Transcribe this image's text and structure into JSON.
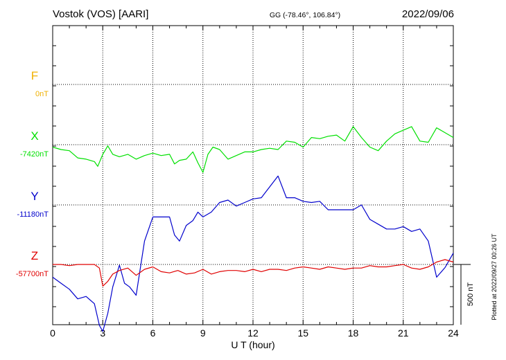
{
  "header": {
    "station": "Vostok (VOS)  [AARI]",
    "coords": "GG (-78.46°, 106.84°)",
    "date": "2022/09/06"
  },
  "footer": {
    "xlabel": "U T (hour)",
    "plotted": "Plotted at 2022/09/27 00:26 UT",
    "scale_label": "500 nT"
  },
  "chart_data": {
    "type": "line",
    "xlabel": "U T (hour)",
    "xlim": [
      0,
      24
    ],
    "xticks": [
      "0",
      "3",
      "6",
      "9",
      "12",
      "15",
      "18",
      "21",
      "24"
    ],
    "scale_nT": 500,
    "grid": true,
    "series": [
      {
        "name": "F",
        "baseline_label": "0nT",
        "color": "#f0b000",
        "x": [],
        "y": []
      },
      {
        "name": "X",
        "baseline_label": "-7420nT",
        "color": "#00e000",
        "x": [
          0,
          0.5,
          1.0,
          1.5,
          2.0,
          2.5,
          2.7,
          3.0,
          3.3,
          3.6,
          4.0,
          4.5,
          5.0,
          5.5,
          6.0,
          6.5,
          7.0,
          7.3,
          7.6,
          8.0,
          8.4,
          8.7,
          9.0,
          9.3,
          9.6,
          10.0,
          10.5,
          11.0,
          11.5,
          12.0,
          12.5,
          13.0,
          13.5,
          14.0,
          14.5,
          15.0,
          15.5,
          16.0,
          16.5,
          17.0,
          17.5,
          18.0,
          18.5,
          19.0,
          19.5,
          20.0,
          20.5,
          21.0,
          21.5,
          22.0,
          22.5,
          23.0,
          23.5,
          24.0
        ],
        "y": [
          -20,
          -40,
          -50,
          -110,
          -120,
          -140,
          -180,
          -80,
          -10,
          -80,
          -100,
          -80,
          -120,
          -90,
          -70,
          -90,
          -80,
          -160,
          -130,
          -120,
          -60,
          -150,
          -230,
          -80,
          -20,
          -40,
          -120,
          -90,
          -60,
          -60,
          -40,
          -30,
          -40,
          30,
          20,
          -20,
          60,
          50,
          70,
          80,
          30,
          150,
          60,
          -20,
          -50,
          30,
          90,
          120,
          150,
          30,
          20,
          140,
          100,
          60
        ]
      },
      {
        "name": "Y",
        "baseline_label": "-11180nT",
        "color": "#0000cc",
        "x": [
          0,
          0.5,
          1.0,
          1.5,
          2.0,
          2.5,
          2.8,
          3.0,
          3.3,
          3.6,
          4.0,
          4.3,
          4.6,
          5.0,
          5.5,
          6.0,
          6.5,
          7.0,
          7.3,
          7.6,
          8.0,
          8.4,
          8.7,
          9.0,
          9.5,
          10.0,
          10.5,
          11.0,
          11.5,
          12.0,
          12.5,
          13.0,
          13.5,
          14.0,
          14.5,
          15.0,
          15.5,
          16.0,
          16.5,
          17.0,
          17.5,
          18.0,
          18.5,
          19.0,
          19.5,
          20.0,
          20.5,
          21.0,
          21.5,
          22.0,
          22.5,
          23.0,
          23.5,
          24.0
        ],
        "y": [
          -600,
          -650,
          -700,
          -780,
          -760,
          -820,
          -1000,
          -1050,
          -900,
          -680,
          -500,
          -650,
          -680,
          -750,
          -300,
          -100,
          -100,
          -100,
          -250,
          -300,
          -170,
          -130,
          -60,
          -100,
          -60,
          20,
          40,
          -10,
          20,
          50,
          60,
          150,
          240,
          60,
          60,
          30,
          20,
          30,
          -40,
          -40,
          -40,
          -40,
          0,
          -120,
          -160,
          -200,
          -200,
          -180,
          -220,
          -200,
          -300,
          -600,
          -520,
          -400
        ]
      },
      {
        "name": "Z",
        "baseline_label": "-57700nT",
        "color": "#e00000",
        "x": [
          0,
          0.5,
          1.0,
          1.5,
          2.0,
          2.5,
          2.8,
          3.0,
          3.3,
          3.6,
          4.0,
          4.5,
          5.0,
          5.5,
          6.0,
          6.5,
          7.0,
          7.5,
          8.0,
          8.5,
          9.0,
          9.5,
          10.0,
          10.5,
          11.0,
          11.5,
          12.0,
          12.5,
          13.0,
          13.5,
          14.0,
          14.5,
          15.0,
          15.5,
          16.0,
          16.5,
          17.0,
          17.5,
          18.0,
          18.5,
          19.0,
          19.5,
          20.0,
          20.5,
          21.0,
          21.5,
          22.0,
          22.5,
          23.0,
          23.5,
          24.0
        ],
        "y": [
          0,
          0,
          -10,
          0,
          0,
          0,
          -30,
          -180,
          -140,
          -80,
          -50,
          -30,
          -90,
          -40,
          -20,
          -60,
          -70,
          -50,
          -80,
          -70,
          -40,
          -80,
          -60,
          -50,
          -50,
          -60,
          -40,
          -60,
          -40,
          -40,
          -50,
          -30,
          -20,
          -30,
          -40,
          -20,
          -30,
          -40,
          -30,
          -30,
          -10,
          -20,
          -20,
          -10,
          0,
          -30,
          -40,
          -20,
          20,
          40,
          20
        ]
      }
    ]
  }
}
